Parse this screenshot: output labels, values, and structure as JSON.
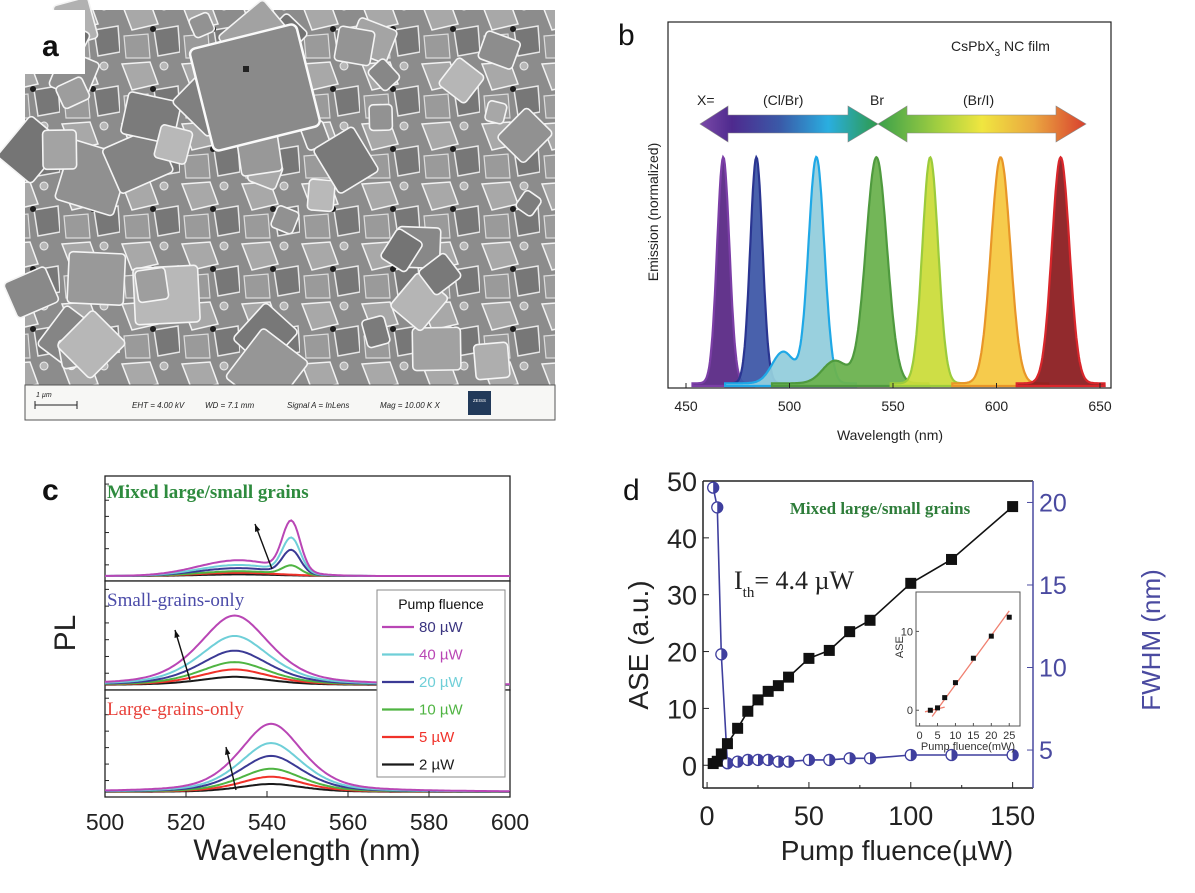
{
  "figure": {
    "panel_labels": {
      "a": "a",
      "b": "b",
      "c": "c",
      "d": "d"
    }
  },
  "panel_a": {
    "type": "SEM micrograph",
    "scale_bar_label": "1 µm",
    "info_bar": {
      "eht": "EHT =  4.00 kV",
      "wd": "WD =  7.1 mm",
      "signal": "Signal A = InLens",
      "mag": "Mag =   10.00 K X",
      "logo": "ZEISS"
    }
  },
  "chart_data": [
    {
      "id": "panel_b",
      "type": "area",
      "title": "CsPbX3 NC film",
      "title_main": "CsPbX",
      "title_sub": "3",
      "title_rest": " NC film",
      "xlabel": "Wavelength (nm)",
      "ylabel": "Emission (normalized)",
      "xlim": [
        440,
        660
      ],
      "xticks": [
        450,
        500,
        550,
        600,
        650
      ],
      "ylim": [
        0,
        1.2
      ],
      "arrow_labels": {
        "x_eq": "X=",
        "cl_br": "(Cl/Br)",
        "br": "Br",
        "br_i": "(Br/I)"
      },
      "series": [
        {
          "name": "peak-1",
          "center": 468,
          "fwhm": 7,
          "fill": "#5b2a86",
          "stroke": "#7b3ea6",
          "shoulder": null
        },
        {
          "name": "peak-2",
          "center": 484,
          "fwhm": 7,
          "fill": "#3f58a8",
          "stroke": "#2a3591",
          "shoulder": null
        },
        {
          "name": "peak-3",
          "center": 513,
          "fwhm": 9,
          "fill": "#93cddc",
          "stroke": "#1fa8e6",
          "shoulder": {
            "center": 497,
            "width": 9,
            "height": 0.14
          }
        },
        {
          "name": "peak-4",
          "center": 542,
          "fwhm": 12,
          "fill": "#6cb24f",
          "stroke": "#4f9a3e",
          "shoulder": {
            "center": 522,
            "width": 10,
            "height": 0.1
          }
        },
        {
          "name": "peak-5",
          "center": 568,
          "fwhm": 9,
          "fill": "#cbdc3c",
          "stroke": "#9ccb3b",
          "shoulder": null
        },
        {
          "name": "peak-6",
          "center": 602,
          "fwhm": 11,
          "fill": "#f5c842",
          "stroke": "#e89628",
          "shoulder": null
        },
        {
          "name": "peak-7",
          "center": 631,
          "fwhm": 10,
          "fill": "#8c1f22",
          "stroke": "#d9262b",
          "shoulder": null
        }
      ]
    },
    {
      "id": "panel_c",
      "type": "line",
      "xlabel": "Wavelength (nm)",
      "ylabel": "PL",
      "xlim": [
        500,
        600
      ],
      "xticks": [
        500,
        520,
        540,
        560,
        580,
        600
      ],
      "subplots": [
        {
          "title": "Mixed large/small grains",
          "title_color": "#2e8b3e",
          "broad_center": 533,
          "broad_width": 10,
          "narrow_center": 546,
          "narrow_width": 2.2,
          "curves": [
            {
              "fluence": "80 µW",
              "broad": 0.2,
              "narrow": 0.62
            },
            {
              "fluence": "40 µW",
              "broad": 0.14,
              "narrow": 0.43
            },
            {
              "fluence": "20 µW",
              "broad": 0.1,
              "narrow": 0.29
            },
            {
              "fluence": "10 µW",
              "broad": 0.06,
              "narrow": 0.11
            },
            {
              "fluence": "5 µW",
              "broad": 0.04,
              "narrow": 0.0
            },
            {
              "fluence": "2 µW",
              "broad": 0.02,
              "narrow": 0.0
            }
          ]
        },
        {
          "title": "Small-grains-only",
          "title_color": "#4b4ba8",
          "center": 532,
          "width": 10,
          "curves": [
            {
              "fluence": "80 µW",
              "amp": 0.85
            },
            {
              "fluence": "40 µW",
              "amp": 0.6
            },
            {
              "fluence": "20 µW",
              "amp": 0.42
            },
            {
              "fluence": "10 µW",
              "amp": 0.28
            },
            {
              "fluence": "5 µW",
              "amp": 0.19
            },
            {
              "fluence": "2 µW",
              "amp": 0.1
            }
          ]
        },
        {
          "title": "Large-grains-only",
          "title_color": "#e8413a",
          "center": 541,
          "width": 9,
          "curves": [
            {
              "fluence": "80 µW",
              "amp": 0.85
            },
            {
              "fluence": "40 µW",
              "amp": 0.61
            },
            {
              "fluence": "20 µW",
              "amp": 0.45
            },
            {
              "fluence": "10 µW",
              "amp": 0.29
            },
            {
              "fluence": "5 µW",
              "amp": 0.19
            },
            {
              "fluence": "2 µW",
              "amp": 0.1
            }
          ]
        }
      ],
      "legend": {
        "title": "Pump fluence",
        "placement": "right",
        "entries": [
          {
            "label": "80 µW",
            "line_color": "#b946b5",
            "text_color": "#3b3580"
          },
          {
            "label": "40 µW",
            "line_color": "#6fcfd8",
            "text_color": "#b946b5"
          },
          {
            "label": "20 µW",
            "line_color": "#3b3a95",
            "text_color": "#6fcfd8"
          },
          {
            "label": "10 µW",
            "line_color": "#4fb442",
            "text_color": "#4fb442"
          },
          {
            "label": "5 µW",
            "line_color": "#f0322a",
            "text_color": "#f0322a"
          },
          {
            "label": "2 µW",
            "line_color": "#1a1a1a",
            "text_color": "#1a1a1a"
          }
        ]
      }
    },
    {
      "id": "panel_d",
      "type": "scatter",
      "title": "Mixed large/small grains",
      "title_color": "#2e7d3a",
      "annotation": {
        "main": "I",
        "sub": "th",
        "rest": "= 4.4 µW"
      },
      "xlabel": "Pump fluence(µW)",
      "ylabel_left": "ASE (a.u.)",
      "ylabel_right": "FWHM (nm)",
      "xlim": [
        -2,
        160
      ],
      "xticks": [
        0,
        50,
        100,
        150
      ],
      "ylim_left": [
        -4,
        50
      ],
      "yticks_left": [
        0,
        10,
        20,
        30,
        40,
        50
      ],
      "ylim_right": [
        2.7,
        21.3
      ],
      "yticks_right": [
        5,
        10,
        15,
        20
      ],
      "right_axis_color": "#4a4aa0",
      "series": [
        {
          "name": "ASE",
          "axis": "left",
          "marker": "square",
          "color": "#111111",
          "x": [
            3,
            5,
            7,
            10,
            15,
            20,
            25,
            30,
            35,
            40,
            50,
            60,
            70,
            80,
            100,
            120,
            150
          ],
          "y": [
            0.3,
            0.7,
            2.0,
            3.8,
            6.5,
            9.5,
            11.5,
            13.0,
            14.0,
            15.5,
            18.8,
            20.2,
            23.5,
            25.5,
            32.0,
            36.2,
            45.5
          ]
        },
        {
          "name": "FWHM",
          "axis": "right",
          "marker": "half-filled-circle",
          "color": "#3f3f9e",
          "x": [
            3,
            5,
            7,
            10,
            15,
            20,
            25,
            30,
            35,
            40,
            50,
            60,
            70,
            80,
            100,
            120,
            150
          ],
          "y": [
            20.9,
            19.7,
            10.8,
            4.2,
            4.3,
            4.4,
            4.4,
            4.4,
            4.3,
            4.3,
            4.4,
            4.4,
            4.5,
            4.5,
            4.7,
            4.7,
            4.7
          ]
        }
      ],
      "inset": {
        "xlabel": "Pump fluence(mW)",
        "ylabel": "ASE",
        "xlim": [
          -1,
          28
        ],
        "xticks": [
          0,
          5,
          10,
          15,
          20,
          25
        ],
        "ylim": [
          -2,
          15
        ],
        "yticks": [
          0,
          10
        ],
        "points": {
          "x": [
            3,
            5,
            7,
            10,
            15,
            20,
            25
          ],
          "y": [
            0.0,
            0.3,
            1.6,
            3.5,
            6.6,
            9.4,
            11.8
          ]
        },
        "fit_color": "#f08070",
        "fit_lines": [
          {
            "x": [
              1.5,
              7
            ],
            "y": [
              -0.2,
              0.4
            ]
          },
          {
            "x": [
              3.5,
              25
            ],
            "y": [
              -0.8,
              12.6
            ]
          }
        ]
      }
    }
  ]
}
